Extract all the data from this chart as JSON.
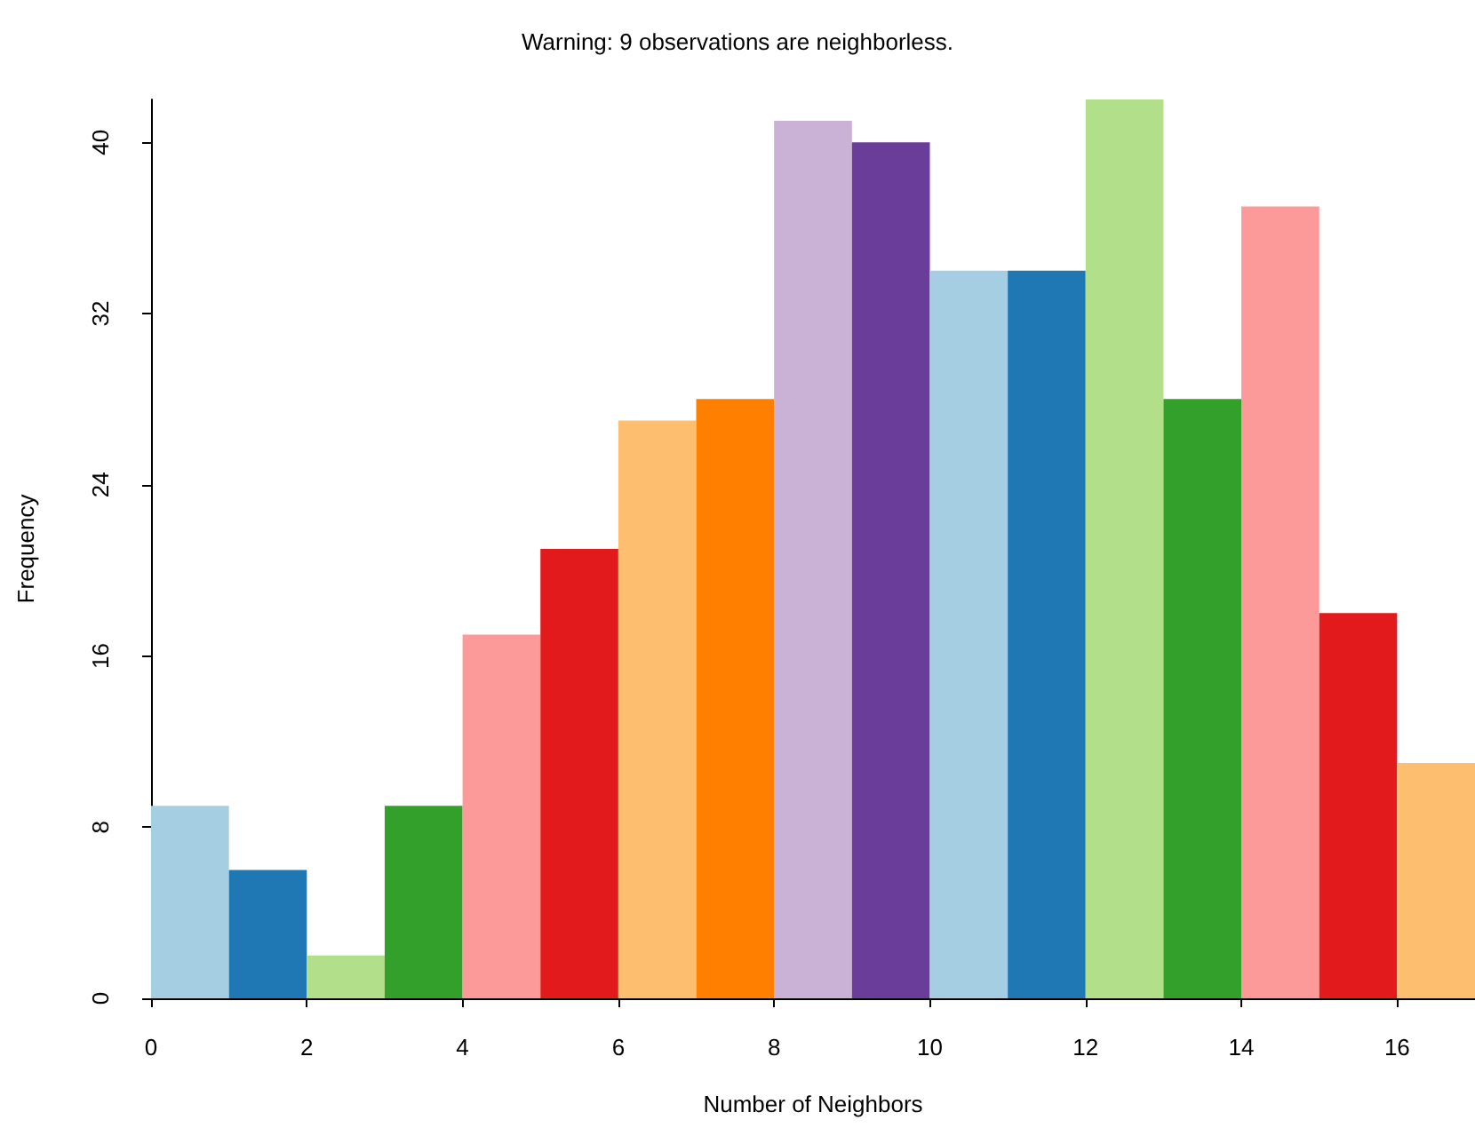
{
  "chart_data": {
    "type": "histogram",
    "title": "Warning: 9 observations are neighborless.",
    "xlabel": "Number of Neighbors",
    "ylabel": "Frequency",
    "bins": [
      0,
      1,
      2,
      3,
      4,
      5,
      6,
      7,
      8,
      9,
      10,
      11,
      12,
      13,
      14,
      15,
      16,
      17
    ],
    "values": [
      9,
      6,
      2,
      9,
      17,
      21,
      27,
      28,
      41,
      40,
      34,
      34,
      42,
      28,
      37,
      18,
      11
    ],
    "colors": [
      "#a6cee3",
      "#1f78b4",
      "#b2df8a",
      "#33a02c",
      "#fb9a99",
      "#e31a1c",
      "#fdbf6f",
      "#ff7f00",
      "#cab2d6",
      "#6a3d9a",
      "#a6cee3",
      "#1f78b4",
      "#b2df8a",
      "#33a02c",
      "#fb9a99",
      "#e31a1c",
      "#fdbf6f"
    ],
    "xlim": [
      0,
      17
    ],
    "ylim": [
      0,
      42
    ],
    "xticks": [
      0,
      2,
      4,
      6,
      8,
      10,
      12,
      14,
      16
    ],
    "yticks": [
      0,
      8,
      16,
      24,
      32,
      40
    ]
  }
}
